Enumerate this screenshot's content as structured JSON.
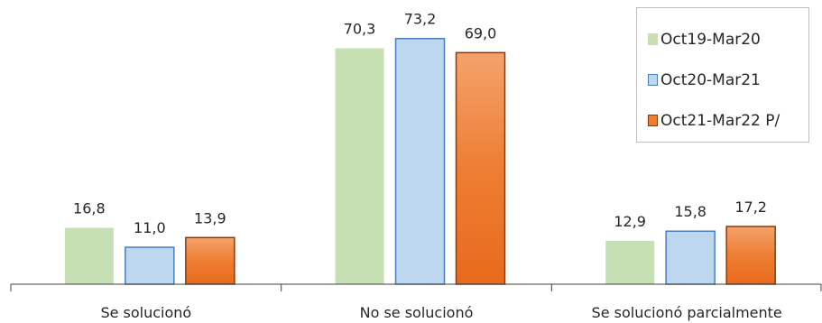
{
  "chart_data": {
    "type": "bar",
    "categories": [
      "Se solucionó",
      "No se solucionó",
      "Se solucionó parcialmente"
    ],
    "series": [
      {
        "name": "Oct19-Mar20",
        "values": [
          16.8,
          70.3,
          12.9
        ],
        "labels": [
          "16,8",
          "70,3",
          "12,9"
        ],
        "fill": "#c6e0b4",
        "stroke": "#c6e0b4"
      },
      {
        "name": "Oct20-Mar21",
        "values": [
          11.0,
          73.2,
          15.8
        ],
        "labels": [
          "11,0",
          "73,2",
          "15,8"
        ],
        "fill": "#bdd7ee",
        "stroke": "#4a7ebb"
      },
      {
        "name": "Oct21-Mar22 P/",
        "values": [
          13.9,
          69.0,
          17.2
        ],
        "labels": [
          "13,9",
          "69,0",
          "17,2"
        ],
        "fill": "#ed7d31",
        "stroke": "#8a3a0a"
      }
    ],
    "ylim": [
      0,
      82
    ],
    "title": "",
    "xlabel": "",
    "ylabel": "",
    "grid": false,
    "legend_position": "top-right",
    "axis_color": "#404040"
  }
}
